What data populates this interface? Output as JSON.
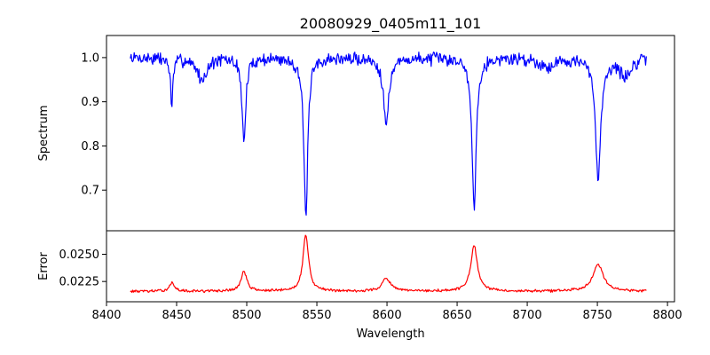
{
  "chart_data": {
    "type": "line",
    "title": "20080929_0405m11_101",
    "xlabel": "Wavelength",
    "xlim": [
      8400,
      8805
    ],
    "xticks": [
      8400,
      8450,
      8500,
      8550,
      8600,
      8650,
      8700,
      8750,
      8800
    ],
    "x_range": [
      8417,
      8785
    ],
    "panels": [
      {
        "name": "spectrum",
        "ylabel": "Spectrum",
        "ylim": [
          0.608,
          1.05
        ],
        "yticks": [
          0.7,
          0.8,
          0.9,
          1.0
        ],
        "tick_labels": [
          "0.7",
          "0.8",
          "0.9",
          "1.0"
        ],
        "color": "#0000ff",
        "series": [
          {
            "name": "Spectrum",
            "baseline": 1.0,
            "noise": 0.012,
            "seed": 7,
            "lines": [
              {
                "center": 8446.5,
                "depth": 0.11,
                "width": 1.0
              },
              {
                "center": 8468.0,
                "depth": 0.05,
                "width": 4.0
              },
              {
                "center": 8498.0,
                "depth": 0.19,
                "width": 1.6
              },
              {
                "center": 8542.1,
                "depth": 0.36,
                "width": 1.7
              },
              {
                "center": 8599.5,
                "depth": 0.14,
                "width": 2.5
              },
              {
                "center": 8662.1,
                "depth": 0.34,
                "width": 1.8
              },
              {
                "center": 8750.5,
                "depth": 0.27,
                "width": 2.3
              },
              {
                "center": 8714.0,
                "depth": 0.02,
                "width": 6.0
              },
              {
                "center": 8770.0,
                "depth": 0.04,
                "width": 5.0
              }
            ]
          }
        ]
      },
      {
        "name": "error",
        "ylabel": "Error",
        "ylim": [
          0.02064,
          0.02716
        ],
        "yticks": [
          0.0225,
          0.025
        ],
        "tick_labels": [
          "0.0225",
          "0.0250"
        ],
        "color": "#ff0000",
        "series": [
          {
            "name": "Error",
            "baseline": 0.0216,
            "noise": 0.0001,
            "seed": 13,
            "lines": [
              {
                "center": 8446.5,
                "depth": 0.0008,
                "width": 2.0
              },
              {
                "center": 8498.0,
                "depth": 0.0018,
                "width": 2.5
              },
              {
                "center": 8542.1,
                "depth": 0.0052,
                "width": 2.4
              },
              {
                "center": 8599.5,
                "depth": 0.0012,
                "width": 3.5
              },
              {
                "center": 8662.1,
                "depth": 0.0042,
                "width": 2.8
              },
              {
                "center": 8750.5,
                "depth": 0.0025,
                "width": 4.5
              }
            ]
          }
        ]
      }
    ]
  }
}
